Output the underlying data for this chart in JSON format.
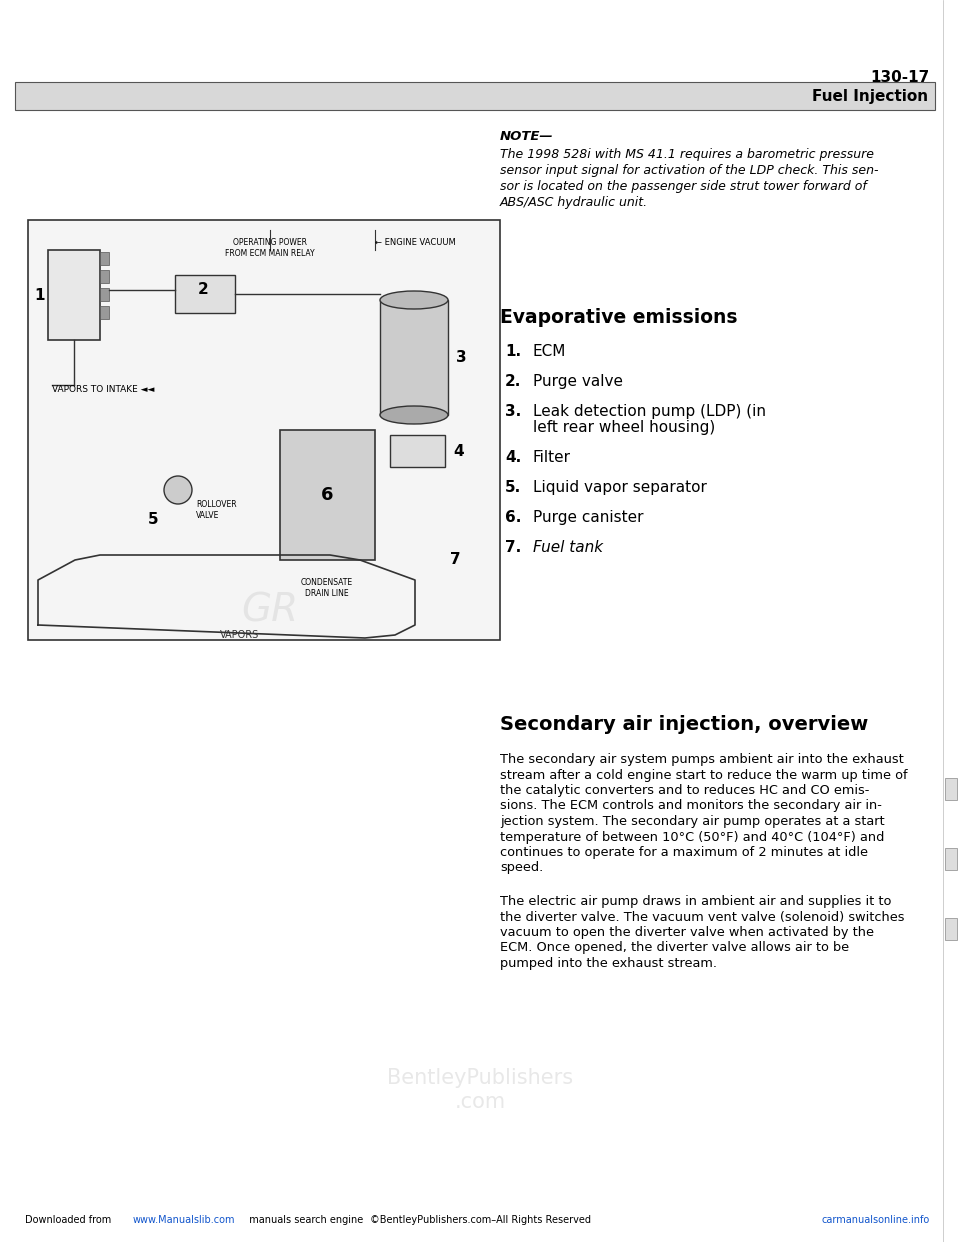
{
  "page_number": "130-17",
  "section_title": "Fuel Injection",
  "background_color": "#ffffff",
  "note_title": "NOTE—",
  "note_lines": [
    "The 1998 528i with MS 41.1 requires a barometric pressure",
    "sensor input signal for activation of the LDP check. This sen-",
    "sor is located on the passenger side strut tower forward of",
    "ABS/ASC hydraulic unit."
  ],
  "evap_title": "Evaporative emissions",
  "evap_items": [
    "ECM",
    "Purge valve",
    "Leak detection pump (LDP) (in",
    "left rear wheel housing)",
    "Filter",
    "Liquid vapor separator",
    "Purge canister",
    "Fuel tank"
  ],
  "evap_italic": [
    false,
    false,
    false,
    false,
    false,
    false,
    false,
    true
  ],
  "evap_numbering": [
    1,
    2,
    3,
    0,
    4,
    5,
    6,
    7
  ],
  "secondary_title": "Secondary air injection, overview",
  "para1_lines": [
    "The secondary air system pumps ambient air into the exhaust",
    "stream after a cold engine start to reduce the warm up time of",
    "the catalytic converters and to reduces HC and CO emis-",
    "sions. The ECM controls and monitors the secondary air in-",
    "jection system. The secondary air pump operates at a start",
    "temperature of between 10°C (50°F) and 40°C (104°F) and",
    "continues to operate for a maximum of 2 minutes at idle",
    "speed."
  ],
  "para2_lines": [
    "The electric air pump draws in ambient air and supplies it to",
    "the diverter valve. The vacuum vent valve (solenoid) switches",
    "vacuum to open the diverter valve when activated by the",
    "ECM. Once opened, the diverter valve allows air to be",
    "pumped into the exhaust stream."
  ],
  "footer_left1": "Downloaded from ",
  "footer_left2": "www.Manualslib.com",
  "footer_left3": "  manuals search engine",
  "footer_center": "©BentleyPublishers.com–All Rights Reserved",
  "footer_right": "carmanualsonline.info",
  "watermark": "BentleyPublishers\n.com"
}
